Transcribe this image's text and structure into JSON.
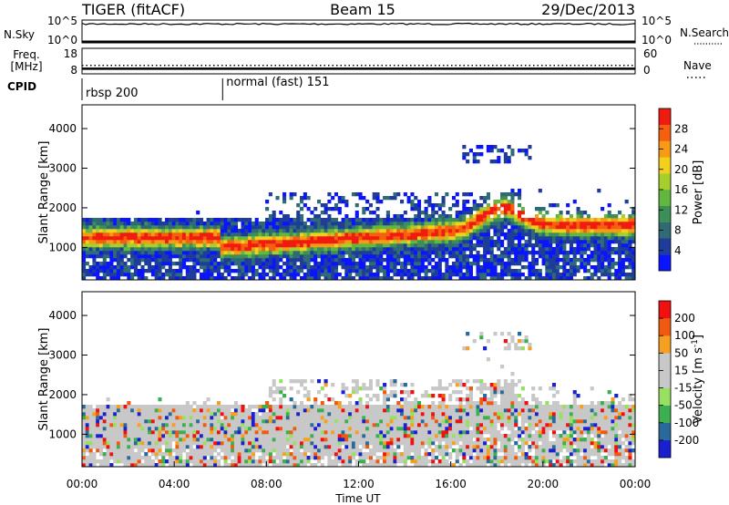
{
  "header": {
    "station": "TIGER (fitACF)",
    "beam": "Beam 15",
    "date": "29/Dec/2013"
  },
  "chart_data": [
    {
      "type": "line",
      "panel": "noise",
      "left_label": "N.Sky",
      "right_label": "N.Search",
      "yticks_left": [
        "10^5",
        "10^0"
      ],
      "yticks_right": [
        "10^5",
        "10^0"
      ]
    },
    {
      "type": "line",
      "panel": "frequency",
      "left_label_lines": [
        "Freq.",
        "[MHz]"
      ],
      "right_label": "Nave",
      "yticks_left": [
        "18",
        "8"
      ],
      "yticks_right": [
        "60",
        "0"
      ],
      "frequency_mhz": 10,
      "nave": 20
    },
    {
      "type": "table",
      "panel": "cpid",
      "label": "CPID",
      "programs": [
        {
          "name": "rbsp 200",
          "start_hour": 0,
          "end_hour": 6.1
        },
        {
          "name": "normal (fast) 151",
          "start_hour": 6.1,
          "end_hour": 24
        }
      ]
    },
    {
      "type": "heatmap",
      "panel": "power",
      "ylabel": "Slant Range [km]",
      "ylim": [
        180,
        4600
      ],
      "yticks": [
        1000,
        2000,
        3000,
        4000
      ],
      "xlim": [
        0,
        24
      ],
      "colorbar_label": "Power [dB]",
      "colorbar_ticks": [
        "4",
        "8",
        "12",
        "16",
        "20",
        "24",
        "28"
      ],
      "colorbar_range": [
        0,
        31
      ],
      "colormap": [
        "#0a14ff",
        "#1e3c9a",
        "#2f6b74",
        "#3c8f58",
        "#62b83e",
        "#a7cf2c",
        "#f2d01c",
        "#f79a14",
        "#f4600e",
        "#f01a10"
      ]
    },
    {
      "type": "heatmap",
      "panel": "velocity",
      "ylabel": "Slant Range [km]",
      "ylim": [
        180,
        4600
      ],
      "yticks": [
        1000,
        2000,
        3000,
        4000
      ],
      "xlim": [
        0,
        24
      ],
      "xlabel": "Time UT",
      "xticks": [
        "00:00",
        "04:00",
        "08:00",
        "12:00",
        "16:00",
        "20:00",
        "00:00"
      ],
      "colorbar_label": "Velocity [m s",
      "colorbar_unit_exp": "-1",
      "colorbar_label_end": "]",
      "colorbar_ticks": [
        "200",
        "100",
        "50",
        "15",
        "-15",
        "-50",
        "-100",
        "-200"
      ],
      "colormap": [
        "#f01010",
        "#f05a10",
        "#f5a020",
        "#c8c8c8",
        "#c8c8c8",
        "#98e060",
        "#3cb050",
        "#2a6a9a",
        "#1a20d0"
      ]
    }
  ]
}
